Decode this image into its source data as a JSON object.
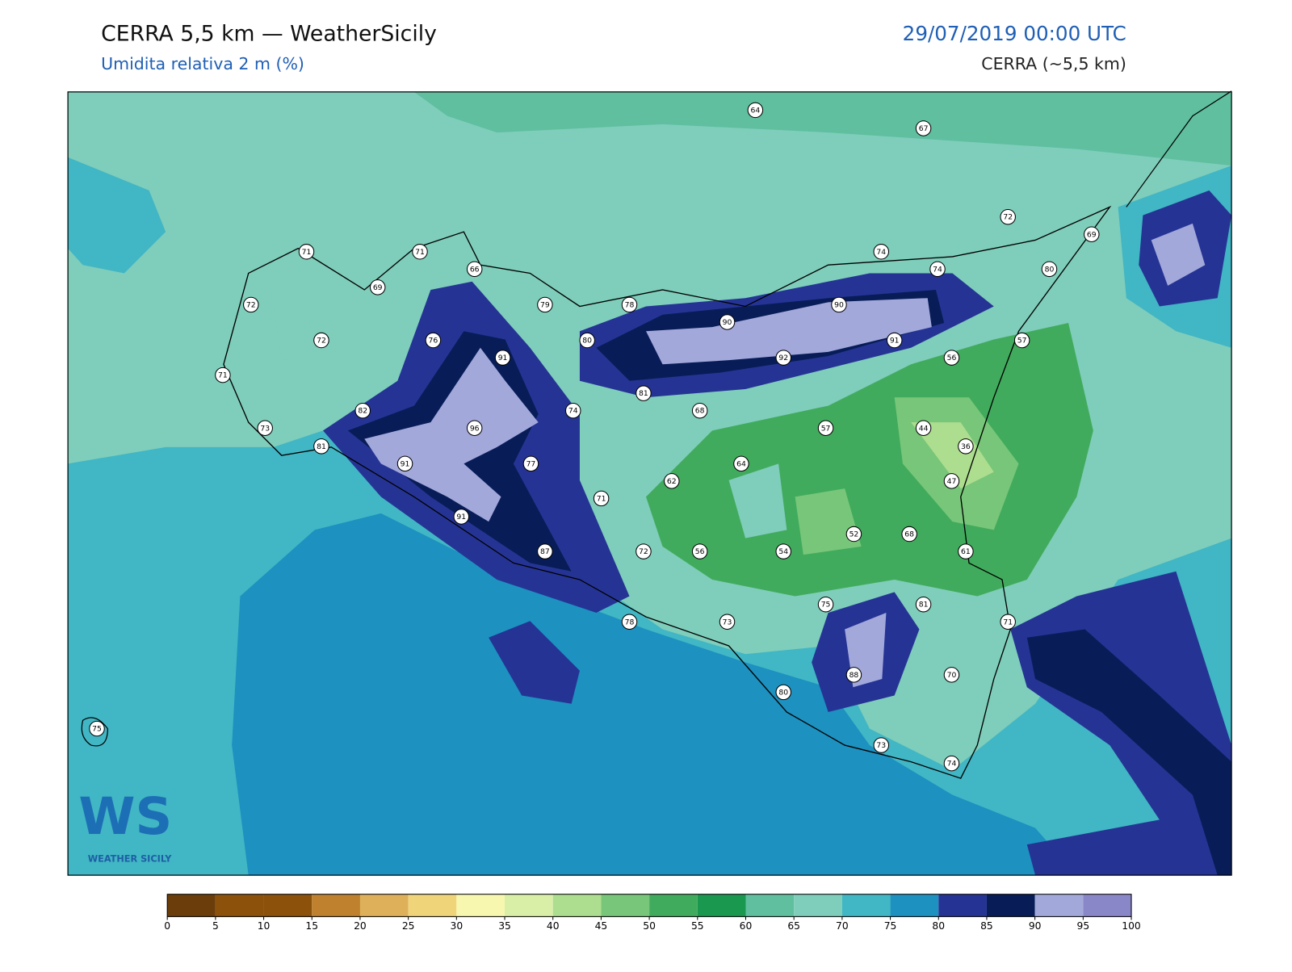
{
  "header": {
    "title": "CERRA 5,5 km — WeatherSicily",
    "subtitle": "Umidita relativa 2 m (%)",
    "date": "29/07/2019 00:00 UTC",
    "source": "CERRA (~5,5 km)"
  },
  "logo": {
    "mark": "WS",
    "name": "WEATHER SICILY"
  },
  "stations": {
    "values": [
      64,
      67,
      72,
      69,
      74,
      74,
      80,
      71,
      71,
      66,
      69,
      72,
      79,
      78,
      90,
      90,
      72,
      76,
      80,
      91,
      57,
      71,
      91,
      92,
      56,
      81,
      82,
      74,
      68,
      73,
      96,
      57,
      44,
      81,
      36,
      91,
      77,
      64,
      62,
      47,
      71,
      91,
      52,
      68,
      87,
      72,
      56,
      54,
      61,
      75,
      81,
      78,
      73,
      71,
      88,
      70,
      80,
      75,
      73,
      74
    ]
  },
  "colorbar": {
    "ticks": [
      0,
      5,
      10,
      15,
      20,
      25,
      30,
      35,
      40,
      45,
      50,
      55,
      60,
      65,
      70,
      75,
      80,
      85,
      90,
      95,
      100
    ],
    "colors": [
      "#6b3d0a",
      "#8c510a",
      "#8c510a",
      "#bf812d",
      "#dfb05a",
      "#f0d47a",
      "#f7f7b0",
      "#d9efa8",
      "#addd8e",
      "#78c679",
      "#41ab5d",
      "#1a9850",
      "#5fbf9f",
      "#7fcdbb",
      "#41b6c4",
      "#1d91c0",
      "#253494",
      "#081d58",
      "#a3a8db",
      "#8a87c8"
    ]
  }
}
